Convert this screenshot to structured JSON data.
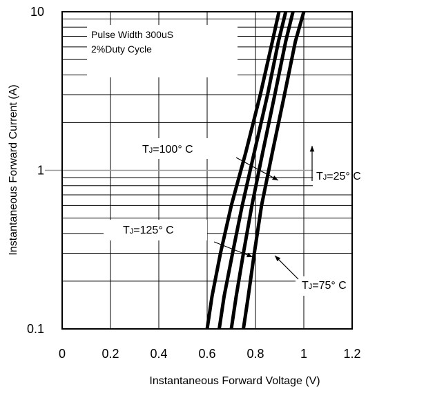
{
  "chart_data": {
    "type": "line",
    "xlabel": "Instantaneous Forward Voltage (V)",
    "ylabel": "Instantaneous Forward Current (A)",
    "xlim": [
      0,
      1.2
    ],
    "ylim": [
      0.1,
      10
    ],
    "y_scale": "log",
    "x_ticks": [
      "0",
      "0.2",
      "0.4",
      "0.6",
      "0.8",
      "1",
      "1.2"
    ],
    "y_ticks": [
      "0.1",
      "1",
      "10"
    ],
    "grid": true,
    "note_lines": [
      "Pulse Width 300uS",
      "2%Duty Cycle"
    ],
    "series": [
      {
        "name": "TJ=125° C",
        "label_main": "T",
        "label_sub": "J",
        "label_rest": "=125° C",
        "x": [
          0.6,
          0.62,
          0.655,
          0.7,
          0.76,
          0.82,
          0.87,
          0.897
        ],
        "y": [
          0.1,
          0.16,
          0.3,
          0.6,
          1.3,
          3.0,
          6.5,
          10
        ]
      },
      {
        "name": "TJ=100° C",
        "label_main": "T",
        "label_sub": "J",
        "label_rest": "=100° C",
        "x": [
          0.65,
          0.67,
          0.705,
          0.745,
          0.795,
          0.85,
          0.895,
          0.925
        ],
        "y": [
          0.1,
          0.16,
          0.3,
          0.6,
          1.3,
          3.0,
          6.5,
          10
        ]
      },
      {
        "name": "TJ=75° C",
        "label_main": "T",
        "label_sub": "J",
        "label_rest": "=75° C",
        "x": [
          0.7,
          0.72,
          0.75,
          0.785,
          0.83,
          0.88,
          0.925,
          0.955
        ],
        "y": [
          0.1,
          0.16,
          0.3,
          0.6,
          1.3,
          3.0,
          6.5,
          10
        ]
      },
      {
        "name": "TJ=25° C",
        "label_main": "T",
        "label_sub": "J",
        "label_rest": "=25° C",
        "x": [
          0.75,
          0.77,
          0.795,
          0.825,
          0.87,
          0.92,
          0.965,
          1.0
        ],
        "y": [
          0.1,
          0.16,
          0.3,
          0.6,
          1.3,
          3.0,
          6.5,
          10
        ]
      }
    ]
  }
}
